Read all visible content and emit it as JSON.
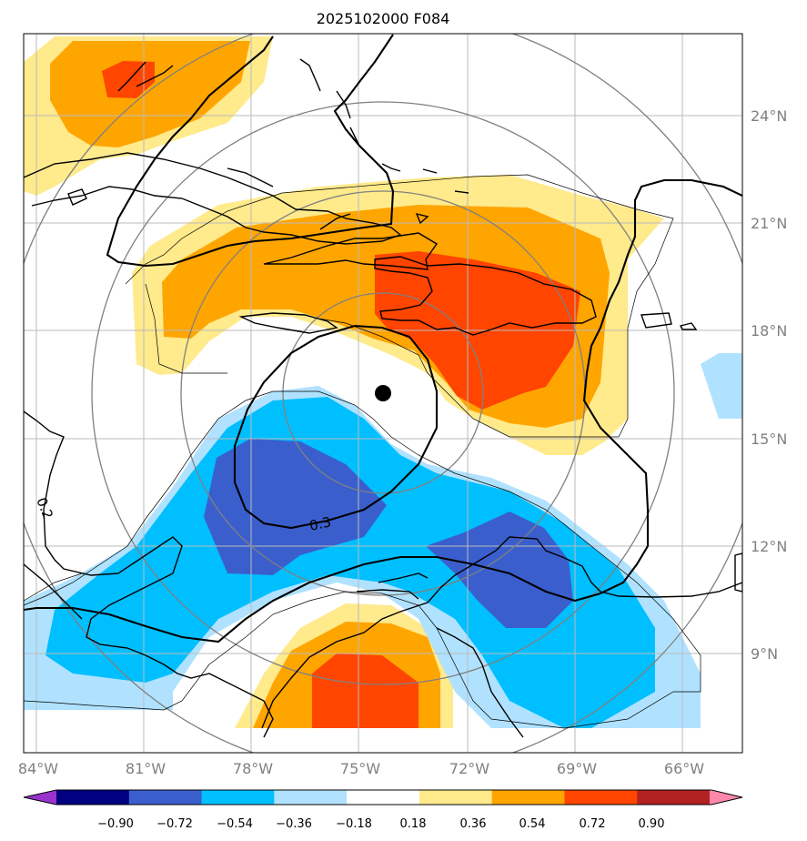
{
  "map": {
    "title": "2025102000 F084",
    "lon_labels": [
      "84°W",
      "81°W",
      "78°W",
      "75°W",
      "72°W",
      "69°W",
      "66°W"
    ],
    "lat_labels": [
      "24°N",
      "21°N",
      "18°N",
      "15°N",
      "12°N",
      "9°N"
    ],
    "contour_labels": [
      "0.3",
      "0.2"
    ],
    "storm_center": {
      "lon": "74.3°W",
      "lat": "16.3°N"
    }
  },
  "colorbar": {
    "ticks": [
      "−0.90",
      "−0.72",
      "−0.54",
      "−0.36",
      "−0.18",
      "0.18",
      "0.36",
      "0.54",
      "0.72",
      "0.90"
    ],
    "colors": [
      "#9a32cd",
      "#000080",
      "#3a5fcd",
      "#00bfff",
      "#b0e2ff",
      "#ffffff",
      "#ffea8c",
      "#ffa500",
      "#ff4500",
      "#b22222",
      "#ff88aa"
    ]
  },
  "palette": {
    "light_yellow": "#ffea8c",
    "orange": "#ffa500",
    "red_orange": "#ff4500",
    "light_blue": "#b0e2ff",
    "deep_sky_blue": "#00bfff",
    "royal_blue": "#3a5fcd",
    "grid": "#bbbbbb",
    "range_rings": "#808080"
  }
}
